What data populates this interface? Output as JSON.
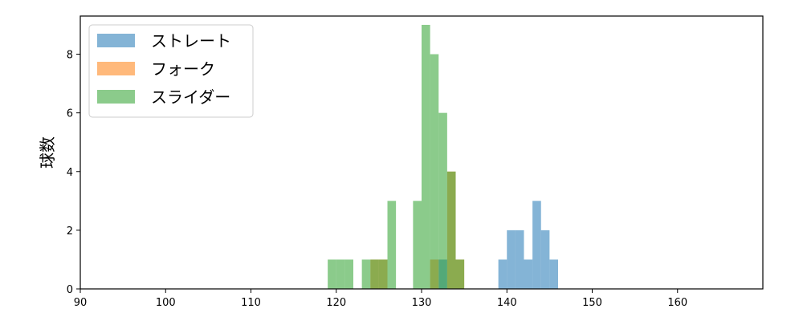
{
  "chart_data": {
    "type": "bar",
    "subtype": "histogram",
    "title": "",
    "xlabel": "",
    "ylabel": "球数",
    "xlim": [
      90,
      170
    ],
    "ylim": [
      0,
      9.3
    ],
    "x_ticks": [
      90,
      100,
      110,
      120,
      130,
      140,
      150,
      160
    ],
    "y_ticks": [
      0,
      2,
      4,
      6,
      8
    ],
    "grid": false,
    "legend_position": "top-left",
    "bin_width": 1,
    "series": [
      {
        "name": "ストレート",
        "color": "#1f77b4",
        "bins": [
          {
            "x": 132,
            "count": 1
          },
          {
            "x": 139,
            "count": 1
          },
          {
            "x": 140,
            "count": 2
          },
          {
            "x": 141,
            "count": 2
          },
          {
            "x": 142,
            "count": 1
          },
          {
            "x": 143,
            "count": 3
          },
          {
            "x": 144,
            "count": 2
          },
          {
            "x": 145,
            "count": 1
          }
        ]
      },
      {
        "name": "フォーク",
        "color": "#ff7f0e",
        "bins": [
          {
            "x": 124,
            "count": 1
          },
          {
            "x": 125,
            "count": 1
          },
          {
            "x": 131,
            "count": 1
          },
          {
            "x": 133,
            "count": 4
          },
          {
            "x": 134,
            "count": 1
          }
        ]
      },
      {
        "name": "スライダー",
        "color": "#2ca02c",
        "bins": [
          {
            "x": 119,
            "count": 1
          },
          {
            "x": 120,
            "count": 1
          },
          {
            "x": 121,
            "count": 1
          },
          {
            "x": 123,
            "count": 1
          },
          {
            "x": 124,
            "count": 1
          },
          {
            "x": 125,
            "count": 1
          },
          {
            "x": 126,
            "count": 3
          },
          {
            "x": 129,
            "count": 3
          },
          {
            "x": 130,
            "count": 9
          },
          {
            "x": 131,
            "count": 8
          },
          {
            "x": 132,
            "count": 6
          },
          {
            "x": 133,
            "count": 4
          },
          {
            "x": 134,
            "count": 1
          }
        ]
      }
    ]
  }
}
